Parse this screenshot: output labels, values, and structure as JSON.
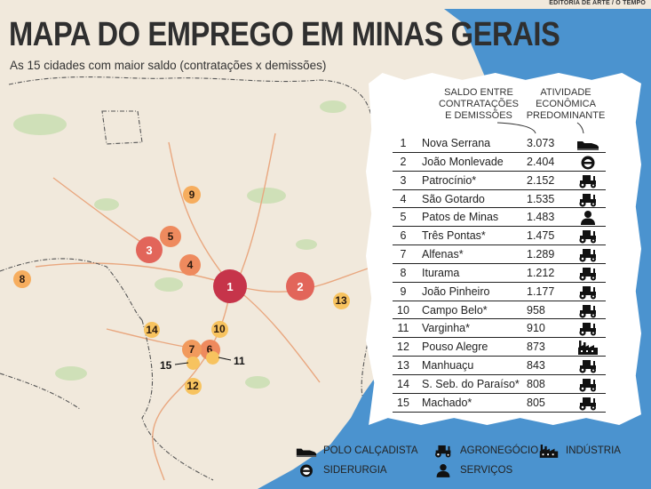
{
  "credit": "EDITORIA DE ARTE / O TEMPO",
  "title": "MAPA DO EMPREGO EM MINAS GERAIS",
  "subtitle": "As 15 cidades com maior saldo (contratações x demissões)",
  "columns": {
    "saldo": "SALDO ENTRE\nCONTRATAÇÕES\nE DEMISSÕES",
    "atividade": "ATIVIDADE\nECONÔMICA\nPREDOMINANTE"
  },
  "ranking": [
    {
      "n": "1",
      "city": "Nova Serrana",
      "value": "3.073",
      "activity": "shoe-icon"
    },
    {
      "n": "2",
      "city": "João Monlevade",
      "value": "2.404",
      "activity": "helmet-icon"
    },
    {
      "n": "3",
      "city": "Patrocínio*",
      "value": "2.152",
      "activity": "tractor-icon"
    },
    {
      "n": "4",
      "city": "São Gotardo",
      "value": "1.535",
      "activity": "tractor-icon"
    },
    {
      "n": "5",
      "city": "Patos de Minas",
      "value": "1.483",
      "activity": "person-icon"
    },
    {
      "n": "6",
      "city": "Três Pontas*",
      "value": "1.475",
      "activity": "tractor-icon"
    },
    {
      "n": "7",
      "city": "Alfenas*",
      "value": "1.289",
      "activity": "tractor-icon"
    },
    {
      "n": "8",
      "city": "Iturama",
      "value": "1.212",
      "activity": "tractor-icon"
    },
    {
      "n": "9",
      "city": "João Pinheiro",
      "value": "1.177",
      "activity": "tractor-icon"
    },
    {
      "n": "10",
      "city": "Campo Belo*",
      "value": "958",
      "activity": "tractor-icon"
    },
    {
      "n": "11",
      "city": "Varginha*",
      "value": "910",
      "activity": "tractor-icon"
    },
    {
      "n": "12",
      "city": "Pouso Alegre",
      "value": "873",
      "activity": "factory-icon"
    },
    {
      "n": "13",
      "city": "Manhuaçu",
      "value": "843",
      "activity": "tractor-icon"
    },
    {
      "n": "14",
      "city": "S. Seb. do Paraíso*",
      "value": "808",
      "activity": "tractor-icon"
    },
    {
      "n": "15",
      "city": "Machado*",
      "value": "805",
      "activity": "tractor-icon"
    }
  ],
  "legend": [
    {
      "icon": "shoe-icon",
      "label": "POLO CALÇADISTA"
    },
    {
      "icon": "tractor-icon",
      "label": "AGRONEGÓCIO"
    },
    {
      "icon": "factory-icon",
      "label": "INDÚSTRIA"
    },
    {
      "icon": "helmet-icon",
      "label": "SIDERURGIA"
    },
    {
      "icon": "person-icon",
      "label": "SERVIÇOS"
    }
  ],
  "markers": [
    {
      "n": "1",
      "color": "#c6344a"
    },
    {
      "n": "2",
      "color": "#e2655a"
    },
    {
      "n": "3",
      "color": "#e2655a"
    },
    {
      "n": "4",
      "color": "#ee8a5e"
    },
    {
      "n": "5",
      "color": "#ee8a5e"
    },
    {
      "n": "6",
      "color": "#ee8a5e"
    },
    {
      "n": "7",
      "color": "#f19a5d"
    },
    {
      "n": "8",
      "color": "#f6ad5e"
    },
    {
      "n": "9",
      "color": "#f6ad5e"
    },
    {
      "n": "10",
      "color": "#f7c35f"
    },
    {
      "n": "11",
      "color": "#f7c35f"
    },
    {
      "n": "12",
      "color": "#f7c35f"
    },
    {
      "n": "13",
      "color": "#f7c35f"
    },
    {
      "n": "14",
      "color": "#f7c35f"
    },
    {
      "n": "15",
      "color": "#f7c35f"
    }
  ],
  "callouts": [
    "15",
    "11"
  ],
  "colors": {
    "ocean": "#4b93cf",
    "land": "#f1e9dc",
    "vegetation": "#cfe0b8",
    "roads": "#e9a77f",
    "borders": "#555555"
  }
}
